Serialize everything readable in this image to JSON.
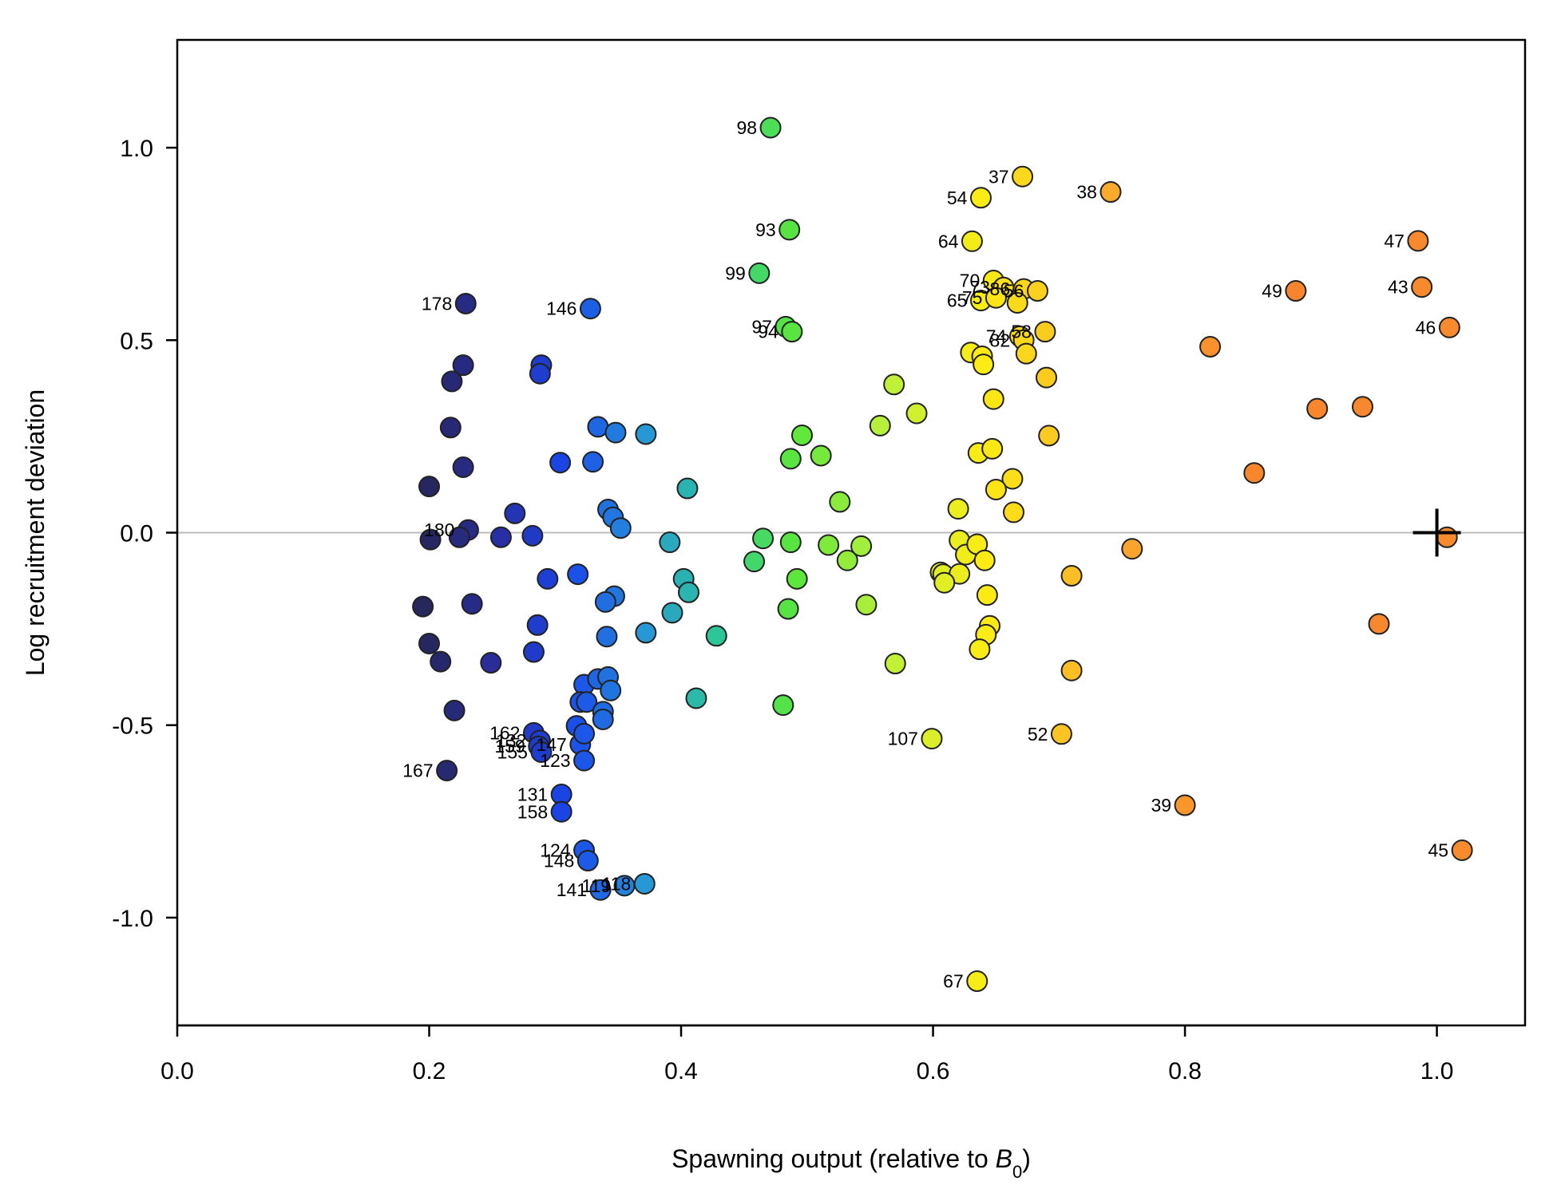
{
  "chart_data": {
    "type": "scatter",
    "title": "",
    "xlabel": "Spawning output (relative to ",
    "xlabel_italic": "B",
    "xlabel_subscript": "0",
    "xlabel_close": ")",
    "ylabel": "Log recruitment deviation",
    "xlim": [
      0.0,
      1.07
    ],
    "ylim": [
      -1.28,
      1.28
    ],
    "x_ticks": [
      0.0,
      0.2,
      0.4,
      0.6,
      0.8,
      1.0
    ],
    "x_tick_labels": [
      "0.0",
      "0.2",
      "0.4",
      "0.6",
      "0.8",
      "1.0"
    ],
    "y_ticks": [
      1.0,
      0.5,
      0.0,
      -0.5,
      -1.0
    ],
    "y_tick_labels": [
      "1.0",
      "0.5",
      "0.0",
      "-0.5",
      "-1.0"
    ],
    "reference_line_y": 0.0,
    "reference_line_color": "#bdbdbd",
    "marker_cross": {
      "x": 1.0,
      "y": 0.0
    },
    "grid": false,
    "legend": "none",
    "color_scale": "point color runs from dark navy (low spawning output) through blue, teal, green and yellow to orange (high spawning output)",
    "points": [
      {
        "x": 0.229,
        "y": 0.595,
        "label": "178"
      },
      {
        "x": 0.227,
        "y": 0.435,
        "label": ""
      },
      {
        "x": 0.218,
        "y": 0.393,
        "label": ""
      },
      {
        "x": 0.217,
        "y": 0.273,
        "label": ""
      },
      {
        "x": 0.227,
        "y": 0.17,
        "label": ""
      },
      {
        "x": 0.2,
        "y": 0.12,
        "label": ""
      },
      {
        "x": 0.231,
        "y": 0.007,
        "label": "180"
      },
      {
        "x": 0.224,
        "y": -0.012,
        "label": ""
      },
      {
        "x": 0.201,
        "y": -0.018,
        "label": ""
      },
      {
        "x": 0.195,
        "y": -0.192,
        "label": ""
      },
      {
        "x": 0.234,
        "y": -0.185,
        "label": ""
      },
      {
        "x": 0.2,
        "y": -0.288,
        "label": ""
      },
      {
        "x": 0.209,
        "y": -0.335,
        "label": ""
      },
      {
        "x": 0.22,
        "y": -0.462,
        "label": ""
      },
      {
        "x": 0.214,
        "y": -0.618,
        "label": "167"
      },
      {
        "x": 0.249,
        "y": -0.338,
        "label": ""
      },
      {
        "x": 0.257,
        "y": -0.012,
        "label": ""
      },
      {
        "x": 0.268,
        "y": 0.05,
        "label": ""
      },
      {
        "x": 0.282,
        "y": -0.008,
        "label": ""
      },
      {
        "x": 0.286,
        "y": -0.24,
        "label": ""
      },
      {
        "x": 0.283,
        "y": -0.31,
        "label": ""
      },
      {
        "x": 0.283,
        "y": -0.52,
        "label": "162"
      },
      {
        "x": 0.288,
        "y": -0.54,
        "label": "132"
      },
      {
        "x": 0.287,
        "y": -0.555,
        "label": "159"
      },
      {
        "x": 0.289,
        "y": -0.57,
        "label": "155"
      },
      {
        "x": 0.32,
        "y": -0.55,
        "label": "147"
      },
      {
        "x": 0.323,
        "y": -0.592,
        "label": "123"
      },
      {
        "x": 0.305,
        "y": -0.68,
        "label": "131"
      },
      {
        "x": 0.305,
        "y": -0.725,
        "label": "158"
      },
      {
        "x": 0.323,
        "y": -0.825,
        "label": "124"
      },
      {
        "x": 0.326,
        "y": -0.852,
        "label": "148"
      },
      {
        "x": 0.336,
        "y": -0.928,
        "label": "141"
      },
      {
        "x": 0.355,
        "y": -0.917,
        "label": "119"
      },
      {
        "x": 0.371,
        "y": -0.912,
        "label": "118"
      },
      {
        "x": 0.328,
        "y": 0.582,
        "label": "146"
      },
      {
        "x": 0.289,
        "y": 0.435,
        "label": ""
      },
      {
        "x": 0.288,
        "y": 0.413,
        "label": ""
      },
      {
        "x": 0.334,
        "y": 0.275,
        "label": ""
      },
      {
        "x": 0.348,
        "y": 0.26,
        "label": ""
      },
      {
        "x": 0.372,
        "y": 0.256,
        "label": ""
      },
      {
        "x": 0.304,
        "y": 0.182,
        "label": ""
      },
      {
        "x": 0.33,
        "y": 0.184,
        "label": ""
      },
      {
        "x": 0.342,
        "y": 0.06,
        "label": ""
      },
      {
        "x": 0.346,
        "y": 0.04,
        "label": ""
      },
      {
        "x": 0.352,
        "y": 0.012,
        "label": ""
      },
      {
        "x": 0.294,
        "y": -0.12,
        "label": ""
      },
      {
        "x": 0.318,
        "y": -0.108,
        "label": ""
      },
      {
        "x": 0.347,
        "y": -0.165,
        "label": ""
      },
      {
        "x": 0.34,
        "y": -0.18,
        "label": ""
      },
      {
        "x": 0.341,
        "y": -0.27,
        "label": ""
      },
      {
        "x": 0.372,
        "y": -0.26,
        "label": ""
      },
      {
        "x": 0.323,
        "y": -0.395,
        "label": ""
      },
      {
        "x": 0.334,
        "y": -0.38,
        "label": ""
      },
      {
        "x": 0.342,
        "y": -0.375,
        "label": ""
      },
      {
        "x": 0.344,
        "y": -0.41,
        "label": ""
      },
      {
        "x": 0.32,
        "y": -0.44,
        "label": ""
      },
      {
        "x": 0.325,
        "y": -0.44,
        "label": ""
      },
      {
        "x": 0.338,
        "y": -0.465,
        "label": ""
      },
      {
        "x": 0.338,
        "y": -0.485,
        "label": ""
      },
      {
        "x": 0.317,
        "y": -0.502,
        "label": ""
      },
      {
        "x": 0.323,
        "y": -0.522,
        "label": ""
      },
      {
        "x": 0.391,
        "y": -0.025,
        "label": ""
      },
      {
        "x": 0.402,
        "y": -0.12,
        "label": ""
      },
      {
        "x": 0.406,
        "y": -0.155,
        "label": ""
      },
      {
        "x": 0.393,
        "y": -0.208,
        "label": ""
      },
      {
        "x": 0.405,
        "y": 0.115,
        "label": ""
      },
      {
        "x": 0.412,
        "y": -0.43,
        "label": ""
      },
      {
        "x": 0.428,
        "y": -0.268,
        "label": ""
      },
      {
        "x": 0.471,
        "y": 1.052,
        "label": "98"
      },
      {
        "x": 0.486,
        "y": 0.787,
        "label": "93"
      },
      {
        "x": 0.462,
        "y": 0.674,
        "label": "99"
      },
      {
        "x": 0.483,
        "y": 0.535,
        "label": "97"
      },
      {
        "x": 0.488,
        "y": 0.522,
        "label": "94"
      },
      {
        "x": 0.496,
        "y": 0.253,
        "label": ""
      },
      {
        "x": 0.487,
        "y": 0.192,
        "label": ""
      },
      {
        "x": 0.511,
        "y": 0.2,
        "label": ""
      },
      {
        "x": 0.465,
        "y": -0.015,
        "label": ""
      },
      {
        "x": 0.487,
        "y": -0.025,
        "label": ""
      },
      {
        "x": 0.458,
        "y": -0.075,
        "label": ""
      },
      {
        "x": 0.492,
        "y": -0.12,
        "label": ""
      },
      {
        "x": 0.485,
        "y": -0.198,
        "label": ""
      },
      {
        "x": 0.481,
        "y": -0.448,
        "label": ""
      },
      {
        "x": 0.526,
        "y": 0.08,
        "label": ""
      },
      {
        "x": 0.517,
        "y": -0.032,
        "label": ""
      },
      {
        "x": 0.532,
        "y": -0.072,
        "label": ""
      },
      {
        "x": 0.543,
        "y": -0.035,
        "label": ""
      },
      {
        "x": 0.547,
        "y": -0.187,
        "label": ""
      },
      {
        "x": 0.569,
        "y": 0.385,
        "label": ""
      },
      {
        "x": 0.558,
        "y": 0.278,
        "label": ""
      },
      {
        "x": 0.587,
        "y": 0.31,
        "label": ""
      },
      {
        "x": 0.57,
        "y": -0.34,
        "label": ""
      },
      {
        "x": 0.599,
        "y": -0.535,
        "label": "107"
      },
      {
        "x": 0.671,
        "y": 0.925,
        "label": "37"
      },
      {
        "x": 0.741,
        "y": 0.885,
        "label": "38"
      },
      {
        "x": 0.638,
        "y": 0.87,
        "label": "54"
      },
      {
        "x": 0.631,
        "y": 0.757,
        "label": "64"
      },
      {
        "x": 0.648,
        "y": 0.655,
        "label": "70"
      },
      {
        "x": 0.656,
        "y": 0.637,
        "label": "73"
      },
      {
        "x": 0.672,
        "y": 0.633,
        "label": "86"
      },
      {
        "x": 0.683,
        "y": 0.628,
        "label": "56"
      },
      {
        "x": 0.638,
        "y": 0.603,
        "label": "65"
      },
      {
        "x": 0.65,
        "y": 0.61,
        "label": "75"
      },
      {
        "x": 0.667,
        "y": 0.597,
        "label": ""
      },
      {
        "x": 0.689,
        "y": 0.522,
        "label": "58"
      },
      {
        "x": 0.669,
        "y": 0.51,
        "label": "74"
      },
      {
        "x": 0.672,
        "y": 0.5,
        "label": "82"
      },
      {
        "x": 0.63,
        "y": 0.468,
        "label": ""
      },
      {
        "x": 0.639,
        "y": 0.458,
        "label": ""
      },
      {
        "x": 0.64,
        "y": 0.437,
        "label": ""
      },
      {
        "x": 0.674,
        "y": 0.465,
        "label": ""
      },
      {
        "x": 0.69,
        "y": 0.403,
        "label": ""
      },
      {
        "x": 0.648,
        "y": 0.347,
        "label": ""
      },
      {
        "x": 0.692,
        "y": 0.252,
        "label": ""
      },
      {
        "x": 0.636,
        "y": 0.207,
        "label": ""
      },
      {
        "x": 0.647,
        "y": 0.218,
        "label": ""
      },
      {
        "x": 0.663,
        "y": 0.14,
        "label": ""
      },
      {
        "x": 0.65,
        "y": 0.112,
        "label": ""
      },
      {
        "x": 0.664,
        "y": 0.053,
        "label": ""
      },
      {
        "x": 0.62,
        "y": 0.062,
        "label": ""
      },
      {
        "x": 0.621,
        "y": -0.02,
        "label": ""
      },
      {
        "x": 0.626,
        "y": -0.057,
        "label": ""
      },
      {
        "x": 0.635,
        "y": -0.03,
        "label": ""
      },
      {
        "x": 0.641,
        "y": -0.072,
        "label": ""
      },
      {
        "x": 0.606,
        "y": -0.103,
        "label": ""
      },
      {
        "x": 0.608,
        "y": -0.108,
        "label": ""
      },
      {
        "x": 0.621,
        "y": -0.107,
        "label": ""
      },
      {
        "x": 0.609,
        "y": -0.13,
        "label": ""
      },
      {
        "x": 0.643,
        "y": -0.162,
        "label": ""
      },
      {
        "x": 0.645,
        "y": -0.242,
        "label": ""
      },
      {
        "x": 0.642,
        "y": -0.265,
        "label": ""
      },
      {
        "x": 0.637,
        "y": -0.303,
        "label": ""
      },
      {
        "x": 0.635,
        "y": -1.165,
        "label": "67"
      },
      {
        "x": 0.71,
        "y": -0.112,
        "label": ""
      },
      {
        "x": 0.71,
        "y": -0.358,
        "label": ""
      },
      {
        "x": 0.702,
        "y": -0.523,
        "label": "52"
      },
      {
        "x": 0.758,
        "y": -0.042,
        "label": ""
      },
      {
        "x": 0.8,
        "y": -0.708,
        "label": "39"
      },
      {
        "x": 0.82,
        "y": 0.483,
        "label": ""
      },
      {
        "x": 0.855,
        "y": 0.155,
        "label": ""
      },
      {
        "x": 0.888,
        "y": 0.628,
        "label": "49"
      },
      {
        "x": 0.905,
        "y": 0.322,
        "label": ""
      },
      {
        "x": 0.941,
        "y": 0.327,
        "label": ""
      },
      {
        "x": 0.954,
        "y": -0.237,
        "label": ""
      },
      {
        "x": 0.985,
        "y": 0.758,
        "label": "47"
      },
      {
        "x": 0.988,
        "y": 0.638,
        "label": "43"
      },
      {
        "x": 1.01,
        "y": 0.533,
        "label": "46"
      },
      {
        "x": 1.008,
        "y": -0.012,
        "label": ""
      },
      {
        "x": 1.02,
        "y": -0.825,
        "label": "45"
      }
    ]
  }
}
